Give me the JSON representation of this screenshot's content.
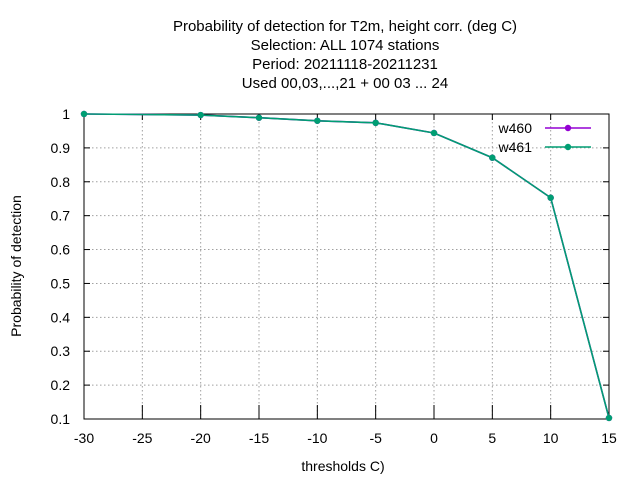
{
  "chart_data": {
    "type": "line",
    "title_lines": [
      "Probability of detection  for T2m, height corr. (deg C)",
      "Selection: ALL   1074 stations",
      "Period: 20211118-20211231",
      "Used  00,03,...,21  + 00 03 ... 24"
    ],
    "xlabel": "thresholds C)",
    "ylabel": "Probability of detection",
    "xlim": [
      -30,
      15
    ],
    "ylim": [
      0.1,
      1.0
    ],
    "xticks": [
      -30,
      -25,
      -20,
      -15,
      -10,
      -5,
      0,
      5,
      10,
      15
    ],
    "yticks": [
      "0.1",
      "0.2",
      "0.3",
      "0.4",
      "0.5",
      "0.6",
      "0.7",
      "0.8",
      "0.9",
      "1"
    ],
    "grid": true,
    "legend_position": "top-right",
    "x": [
      -30,
      -20,
      -15,
      -10,
      -5,
      0,
      5,
      10,
      15
    ],
    "series": [
      {
        "name": "w460",
        "color": "#9400d3",
        "values": [
          1.0,
          0.997,
          0.989,
          0.98,
          0.974,
          0.944,
          0.871,
          0.753,
          0.103
        ]
      },
      {
        "name": "w461",
        "color": "#009e73",
        "values": [
          1.0,
          0.997,
          0.989,
          0.98,
          0.974,
          0.944,
          0.871,
          0.753,
          0.103
        ]
      }
    ]
  }
}
